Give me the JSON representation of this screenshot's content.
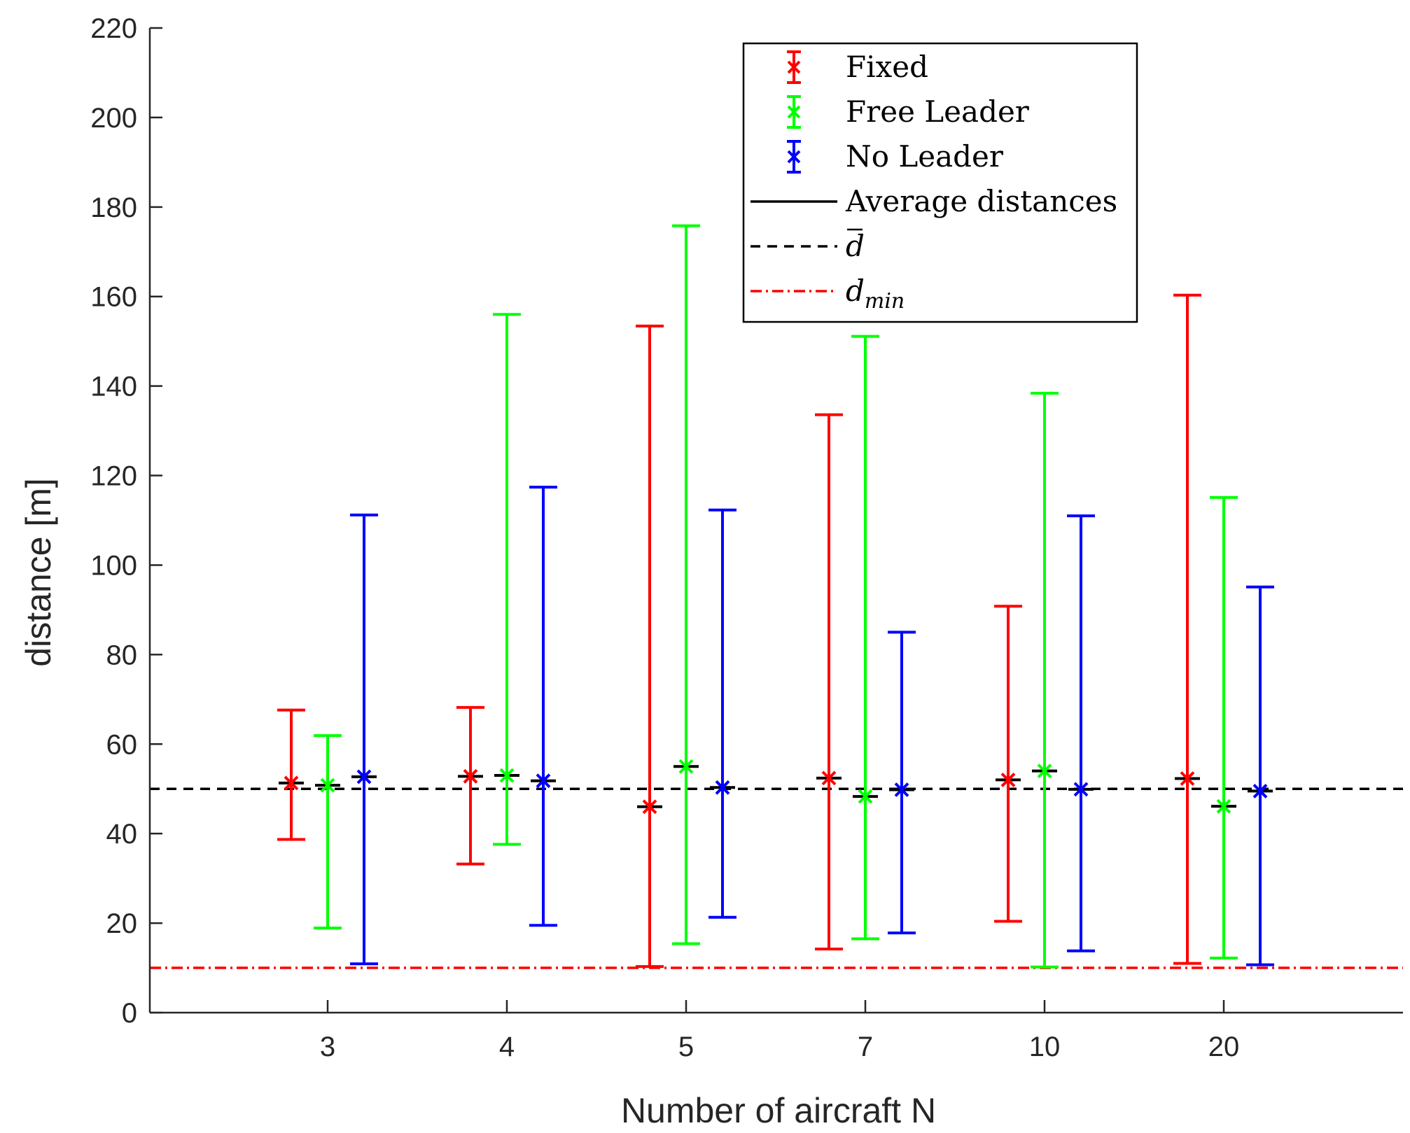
{
  "chart_data": {
    "type": "errorbar",
    "xlabel": "Number of aircraft N",
    "ylabel": "distance [m]",
    "ylim": [
      0,
      220
    ],
    "yticks": [
      0,
      20,
      40,
      60,
      80,
      100,
      120,
      140,
      160,
      180,
      200,
      220
    ],
    "categories": [
      "3",
      "4",
      "5",
      "7",
      "10",
      "20"
    ],
    "series": [
      {
        "name": "Fixed",
        "color": "#ff0000",
        "points": [
          {
            "mean": 51.3,
            "avg": 51.3,
            "min": 38.7,
            "max": 67.6
          },
          {
            "mean": 52.8,
            "avg": 52.8,
            "min": 33.2,
            "max": 68.2
          },
          {
            "mean": 46.0,
            "avg": 46.0,
            "min": 10.3,
            "max": 153.4
          },
          {
            "mean": 52.4,
            "avg": 52.4,
            "min": 14.2,
            "max": 133.6
          },
          {
            "mean": 52.0,
            "avg": 52.0,
            "min": 20.4,
            "max": 90.8
          },
          {
            "mean": 52.3,
            "avg": 52.3,
            "min": 11.0,
            "max": 160.3
          }
        ]
      },
      {
        "name": "Free Leader",
        "color": "#00ff00",
        "points": [
          {
            "mean": 50.8,
            "avg": 50.8,
            "min": 18.9,
            "max": 61.9
          },
          {
            "mean": 53.0,
            "avg": 53.0,
            "min": 37.6,
            "max": 156.0
          },
          {
            "mean": 55.0,
            "avg": 55.0,
            "min": 15.4,
            "max": 175.8
          },
          {
            "mean": 48.3,
            "avg": 48.3,
            "min": 16.5,
            "max": 151.1
          },
          {
            "mean": 54.0,
            "avg": 54.0,
            "min": 10.2,
            "max": 138.4
          },
          {
            "mean": 46.1,
            "avg": 46.1,
            "min": 12.2,
            "max": 115.1
          }
        ]
      },
      {
        "name": "No Leader",
        "color": "#0000ff",
        "points": [
          {
            "mean": 52.7,
            "avg": 52.7,
            "min": 10.9,
            "max": 111.2
          },
          {
            "mean": 51.8,
            "avg": 51.8,
            "min": 19.5,
            "max": 117.4
          },
          {
            "mean": 50.3,
            "avg": 50.3,
            "min": 21.3,
            "max": 112.3
          },
          {
            "mean": 49.8,
            "avg": 49.8,
            "min": 17.8,
            "max": 85.0
          },
          {
            "mean": 49.9,
            "avg": 49.9,
            "min": 13.8,
            "max": 111.0
          },
          {
            "mean": 49.5,
            "avg": 49.5,
            "min": 10.7,
            "max": 95.1
          }
        ]
      }
    ],
    "reference_lines": [
      {
        "name": "d_bar",
        "value": 50,
        "color": "#000000",
        "style": "dashed"
      },
      {
        "name": "d_min",
        "value": 10,
        "color": "#ff0000",
        "style": "dash-dot"
      }
    ],
    "legend": {
      "placement": "top-right",
      "entries": [
        {
          "label": "Fixed",
          "kind": "errorbar",
          "color": "#ff0000"
        },
        {
          "label": "Free Leader",
          "kind": "errorbar",
          "color": "#00ff00"
        },
        {
          "label": "No Leader",
          "kind": "errorbar",
          "color": "#0000ff"
        },
        {
          "label": "Average distances",
          "kind": "solid",
          "color": "#000000"
        },
        {
          "label": "d",
          "kind": "dashed",
          "color": "#000000",
          "overline": true
        },
        {
          "label": "d",
          "sub": "min",
          "kind": "dashdot",
          "color": "#ff0000"
        }
      ]
    }
  }
}
